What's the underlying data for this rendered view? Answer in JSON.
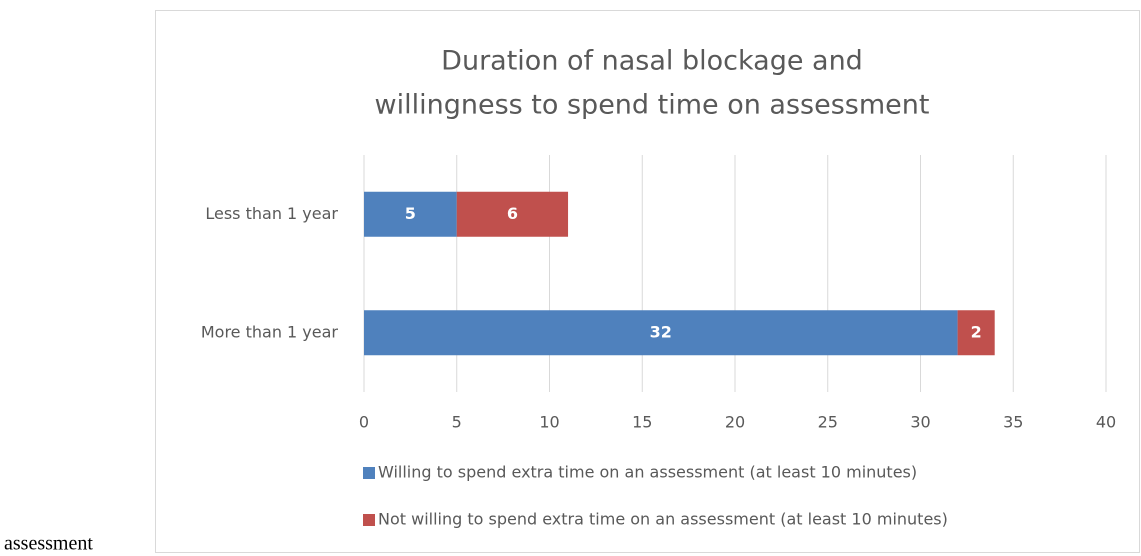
{
  "caption": "assessment",
  "chart_data": {
    "type": "stacked_barh",
    "title": [
      "Duration of nasal blockage and",
      "willingness to spend time on assessment"
    ],
    "categories": [
      "Less than 1 year",
      "More than 1 year"
    ],
    "series": [
      {
        "name": "Willing to spend extra time on an assessment (at least 10 minutes)",
        "color": "#4f81bd",
        "values": [
          5,
          32
        ]
      },
      {
        "name": "Not willing to spend extra time on an assessment (at least 10 minutes)",
        "color": "#c0504d",
        "values": [
          6,
          2
        ]
      }
    ],
    "xlim": [
      0,
      40
    ],
    "xticks": [
      0,
      5,
      10,
      15,
      20,
      25,
      30,
      35,
      40
    ],
    "grid": true,
    "legend": "bottom"
  }
}
